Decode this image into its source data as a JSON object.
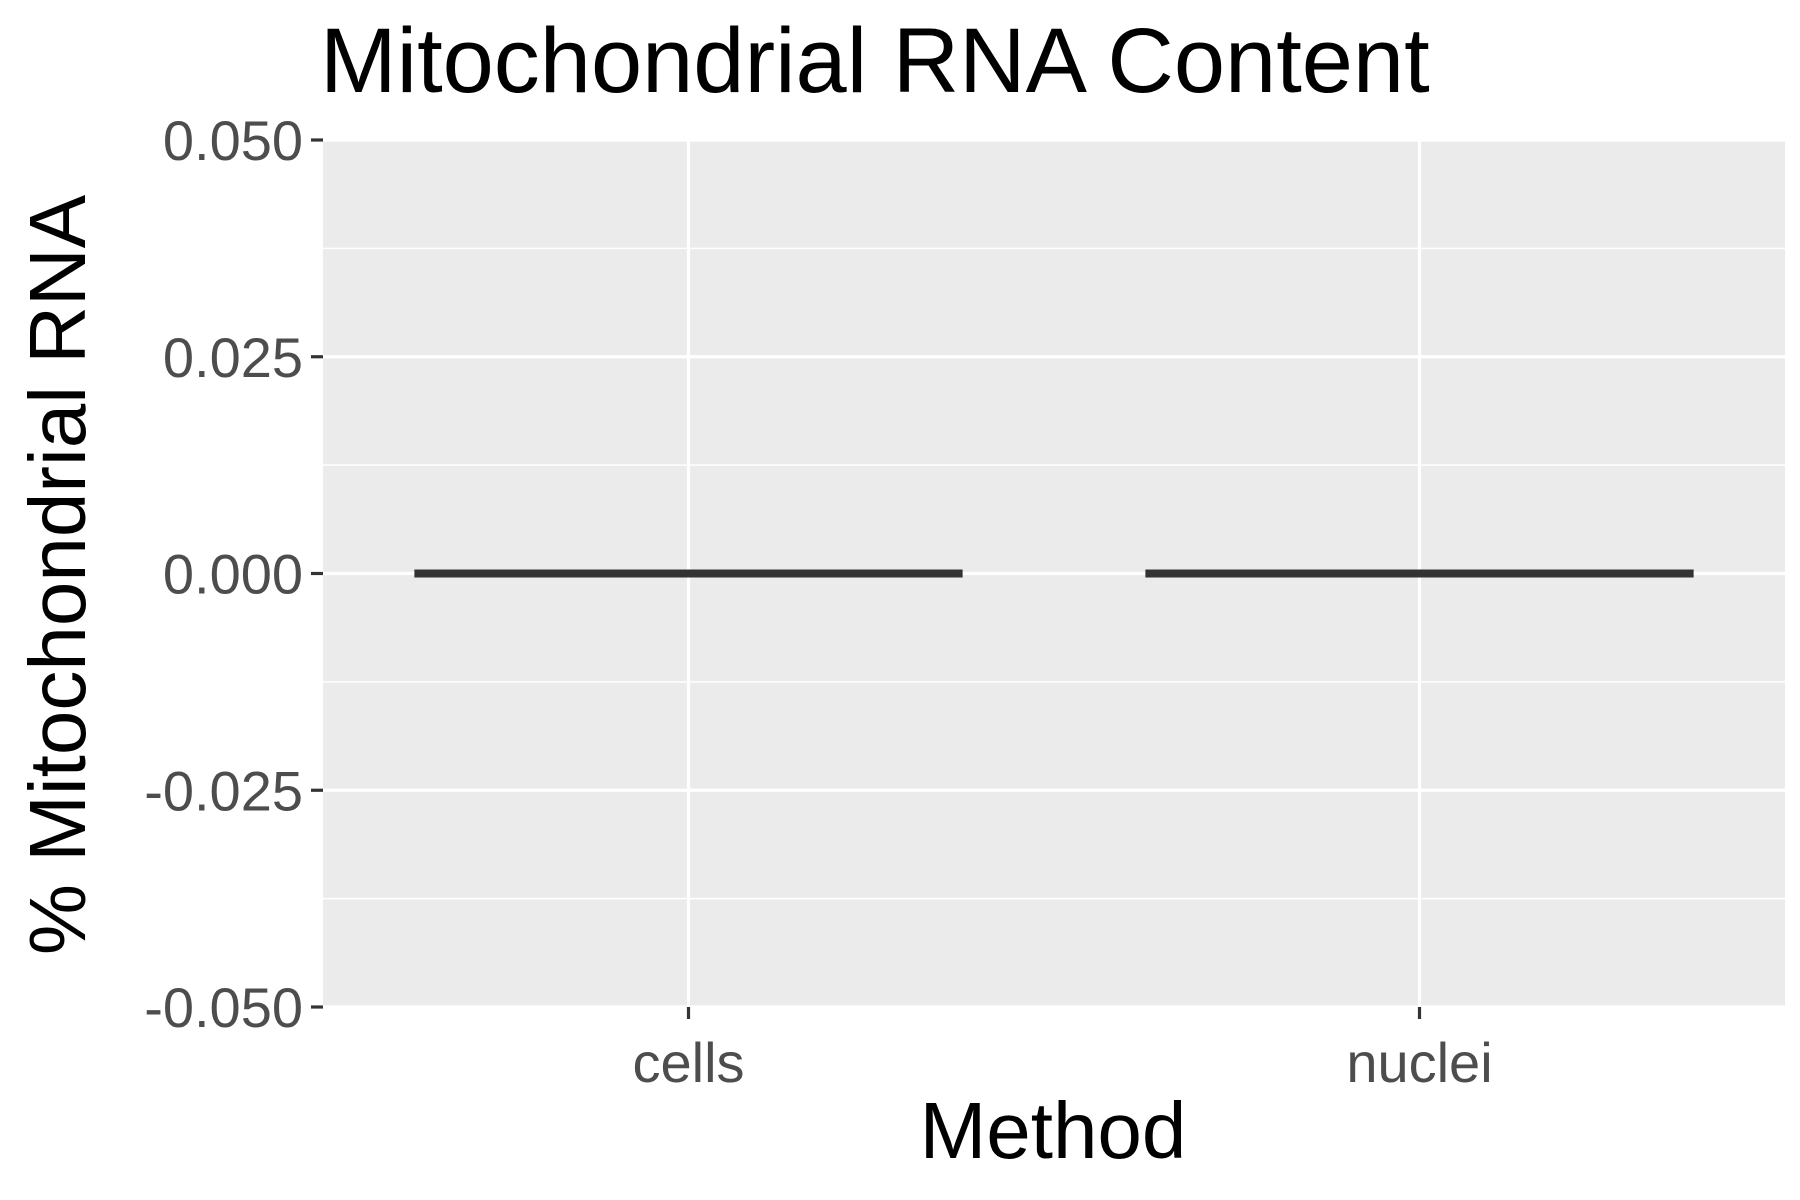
{
  "chart_data": {
    "type": "box",
    "title": "Mitochondrial RNA Content",
    "xlabel": "Method",
    "ylabel": "% Mitochondrial RNA",
    "categories": [
      "cells",
      "nuclei"
    ],
    "values": [
      0.0,
      0.0
    ],
    "y_ticks": [
      0.05,
      0.025,
      0.0,
      -0.025,
      -0.05
    ],
    "y_tick_labels": [
      "0.050",
      "0.025",
      "0.000",
      "-0.025",
      "-0.050"
    ],
    "ylim": [
      -0.05,
      0.05
    ],
    "grid": true,
    "legend": "none",
    "colors": {
      "panel_background": "#ebebeb",
      "grid": "#ffffff",
      "median_line": "#333333",
      "tick_mark": "#333333",
      "tick_label": "#4d4d4d",
      "text": "#000000"
    }
  }
}
